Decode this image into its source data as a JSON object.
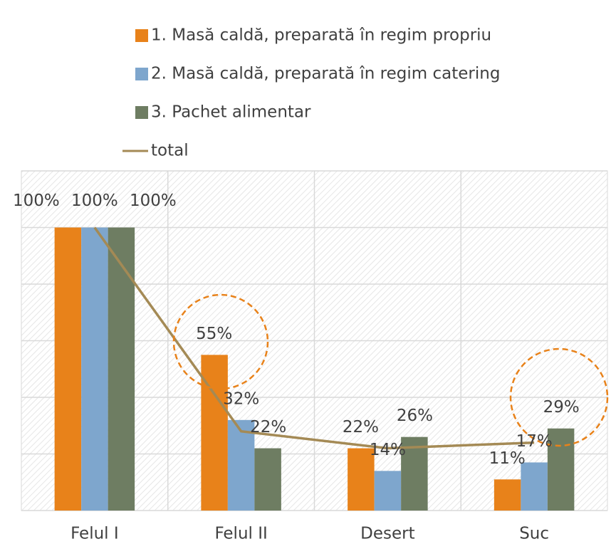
{
  "chart_data": {
    "type": "bar",
    "categories": [
      "Felul I",
      "Felul II",
      "Desert",
      "Suc"
    ],
    "series": [
      {
        "name": "1. Masă caldă, preparată în regim propriu",
        "color": "#e8821a",
        "values": [
          100,
          55,
          22,
          11
        ],
        "value_labels": [
          "100%",
          "55%",
          "22%",
          "11%"
        ]
      },
      {
        "name": "2. Masă caldă, preparată în regim catering",
        "color": "#7ea6cd",
        "values": [
          100,
          32,
          14,
          17
        ],
        "value_labels": [
          "100%",
          "32%",
          "14%",
          "17%"
        ]
      },
      {
        "name": "3. Pachet alimentar",
        "color": "#6e7d62",
        "values": [
          100,
          22,
          26,
          29
        ],
        "value_labels": [
          "100%",
          "22%",
          "26%",
          "29%"
        ]
      },
      {
        "name": "total",
        "type": "line",
        "color": "#a48a55",
        "values": [
          100,
          28,
          22,
          24
        ]
      }
    ],
    "ylim": [
      0,
      120
    ],
    "yticks": [
      0,
      20,
      40,
      60,
      80,
      100,
      120
    ],
    "grid": true,
    "legend": "top"
  }
}
